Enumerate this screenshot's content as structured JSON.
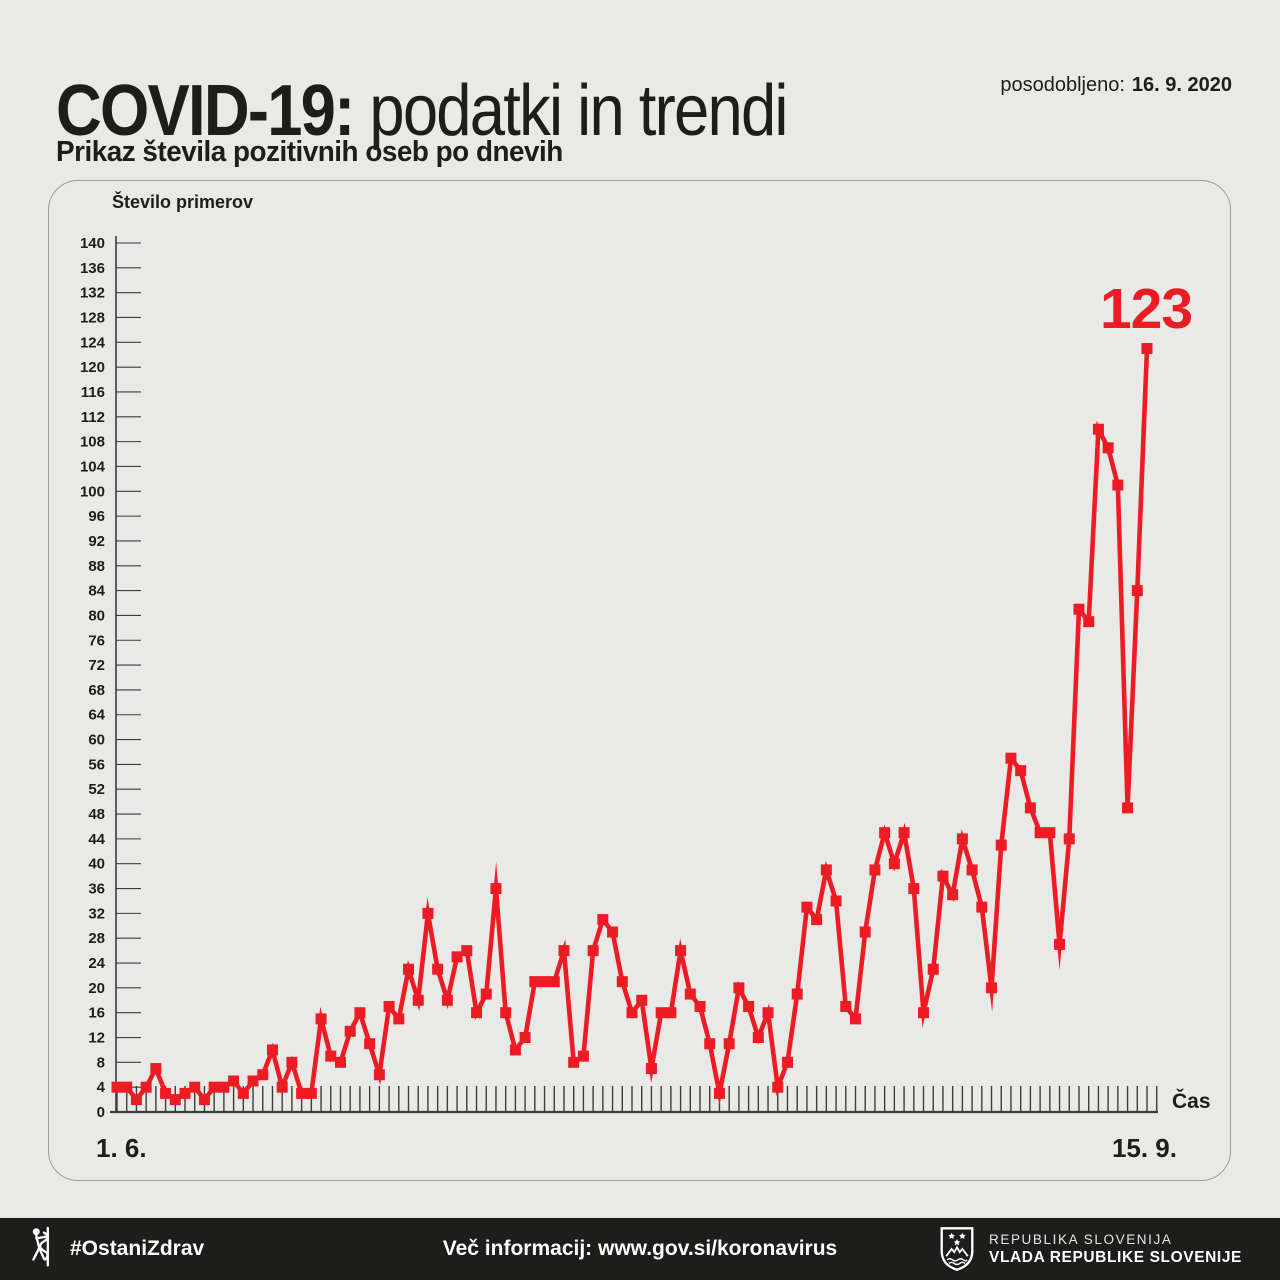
{
  "colors": {
    "accent_red": "#ed1c24",
    "background": "#e9e9e8",
    "footer_background": "#1d1d1b",
    "text": "#1d1d1b",
    "axis": "#3c3c3b"
  },
  "header": {
    "title_strong": "COVID-19:",
    "title_light": " podatki in trendi",
    "updated_label": "posodobljeno:",
    "updated_date": "16. 9. 2020",
    "subtitle": "Prikaz števila pozitivnih oseb po dnevih"
  },
  "chart": {
    "y_axis_title": "Število primerov",
    "x_axis_label": "Čas",
    "x_start_label": "1. 6.",
    "x_end_label": "15. 9."
  },
  "chart_data": {
    "type": "line",
    "title": "Prikaz števila pozitivnih oseb po dnevih",
    "ylabel": "Število primerov",
    "xlabel": "Čas",
    "x_range_labels": [
      "1. 6.",
      "15. 9."
    ],
    "ylim": [
      0,
      140
    ],
    "ytick_step": 4,
    "grid": false,
    "legend": "none",
    "marker": "square",
    "line_color": "#ed1c24",
    "annotation": {
      "text": "123",
      "point_index": 106
    },
    "values": [
      4,
      4,
      2,
      4,
      7,
      3,
      2,
      3,
      4,
      2,
      4,
      4,
      5,
      3,
      5,
      6,
      10,
      4,
      8,
      3,
      3,
      15,
      9,
      8,
      13,
      16,
      11,
      6,
      17,
      15,
      23,
      18,
      32,
      23,
      18,
      25,
      26,
      16,
      19,
      36,
      16,
      10,
      12,
      21,
      21,
      21,
      26,
      8,
      9,
      26,
      31,
      29,
      21,
      16,
      18,
      7,
      16,
      16,
      26,
      19,
      17,
      11,
      3,
      11,
      20,
      17,
      12,
      16,
      4,
      8,
      19,
      33,
      31,
      39,
      34,
      17,
      15,
      29,
      39,
      45,
      40,
      45,
      36,
      16,
      23,
      38,
      35,
      44,
      39,
      33,
      20,
      43,
      57,
      55,
      49,
      45,
      45,
      27,
      44,
      81,
      79,
      110,
      107,
      101,
      49,
      84,
      123
    ]
  },
  "footer": {
    "hashtag": "#OstaniZdrav",
    "info": "Več informacij: www.gov.si/koronavirus",
    "gov_line1": "REPUBLIKA SLOVENIJA",
    "gov_line2": "VLADA REPUBLIKE SLOVENIJE"
  }
}
